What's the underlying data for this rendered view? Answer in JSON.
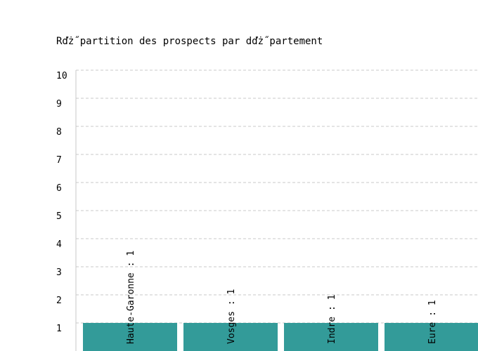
{
  "chart_data": {
    "type": "bar",
    "title": "Rďż˝partition des prospects par dďż˝partement",
    "categories": [
      "Haute-Garonne",
      "Vosges",
      "Indre",
      "Eure"
    ],
    "values": [
      1,
      1,
      1,
      1
    ],
    "data_labels": [
      "Haute-Garonne : 1",
      "Vosges : 1",
      "Indre : 1",
      "Eure : 1"
    ],
    "yticks": [
      "1",
      "2",
      "3",
      "4",
      "5",
      "6",
      "7",
      "8",
      "9",
      "10"
    ],
    "ylim": [
      0,
      10
    ],
    "xlabel": "",
    "ylabel": "",
    "grid": true,
    "bar_color": "#339b99",
    "grid_color": "#c8c8c8"
  }
}
